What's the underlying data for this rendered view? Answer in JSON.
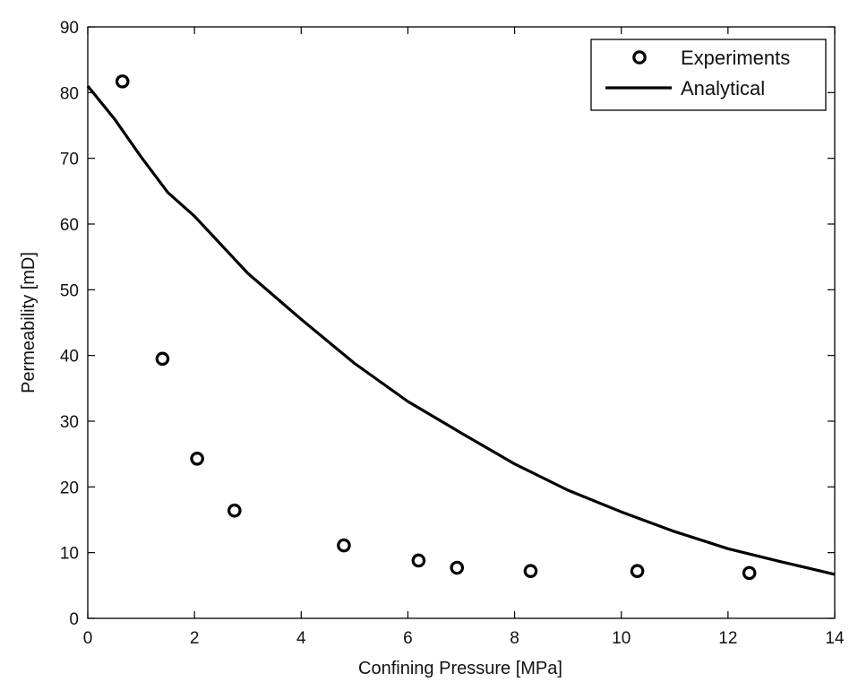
{
  "chart_data": {
    "type": "scatter",
    "xlabel": "Confining Pressure [MPa]",
    "ylabel": "Permeability [mD]",
    "xlim": [
      0,
      14
    ],
    "ylim": [
      0,
      90
    ],
    "x_ticks": [
      "0",
      "2",
      "4",
      "6",
      "8",
      "10",
      "12",
      "14"
    ],
    "y_ticks": [
      "0",
      "10",
      "20",
      "30",
      "40",
      "50",
      "60",
      "70",
      "80",
      "90"
    ],
    "grid": false,
    "legend_position": "top-right",
    "series": [
      {
        "name": "Experiments",
        "marker": "circle-open",
        "color": "#000000",
        "points": [
          {
            "x": 0.65,
            "y": 81.7
          },
          {
            "x": 1.4,
            "y": 39.5
          },
          {
            "x": 2.05,
            "y": 24.3
          },
          {
            "x": 2.75,
            "y": 16.4
          },
          {
            "x": 4.8,
            "y": 11.1
          },
          {
            "x": 6.2,
            "y": 8.8
          },
          {
            "x": 6.92,
            "y": 7.7
          },
          {
            "x": 8.3,
            "y": 7.2
          },
          {
            "x": 10.3,
            "y": 7.2
          },
          {
            "x": 12.4,
            "y": 6.9
          }
        ]
      },
      {
        "name": "Analytical",
        "line": "solid",
        "color": "#000000",
        "points": [
          {
            "x": 0.0,
            "y": 81.0
          },
          {
            "x": 0.5,
            "y": 76.0
          },
          {
            "x": 1.0,
            "y": 70.2
          },
          {
            "x": 1.5,
            "y": 64.8
          },
          {
            "x": 2.0,
            "y": 61.2
          },
          {
            "x": 3.0,
            "y": 52.5
          },
          {
            "x": 4.0,
            "y": 45.5
          },
          {
            "x": 5.0,
            "y": 38.8
          },
          {
            "x": 6.0,
            "y": 33.0
          },
          {
            "x": 7.0,
            "y": 28.2
          },
          {
            "x": 8.0,
            "y": 23.5
          },
          {
            "x": 9.0,
            "y": 19.5
          },
          {
            "x": 10.0,
            "y": 16.2
          },
          {
            "x": 11.0,
            "y": 13.2
          },
          {
            "x": 12.0,
            "y": 10.6
          },
          {
            "x": 13.0,
            "y": 8.6
          },
          {
            "x": 14.0,
            "y": 6.7
          }
        ]
      }
    ]
  }
}
